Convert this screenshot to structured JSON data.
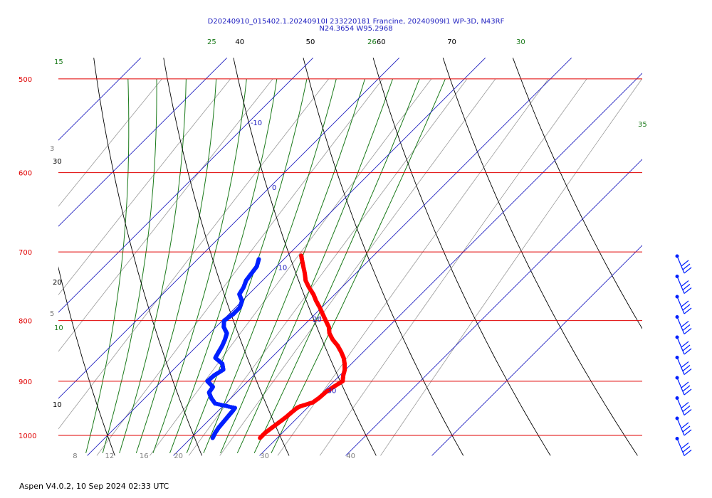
{
  "header": {
    "line1": "D20240910_015402.1.20240910I 233220181 Francine, 20240909I1 WP-3D, N43RF",
    "line2": "N24.3654 W95.2968"
  },
  "footer": {
    "text": "Aspen V4.0.2, 10 Sep 2024  02:33 UTC"
  },
  "colors": {
    "isobar": "#e00000",
    "isotherm": "#2020c0",
    "dry_adiabat": "#000000",
    "moist_adiabat": "#1a7a1a",
    "mixing_ratio": "#9a9a9a",
    "temperature": "#ff0000",
    "dewpoint": "#0020ff"
  },
  "chart_data": {
    "type": "skew-t",
    "pressure_range_hPa": [
      1030,
      500
    ],
    "isobars": [
      500,
      600,
      700,
      800,
      900,
      1000
    ],
    "isobar_labels": [
      "500",
      "600",
      "700",
      "800",
      "900",
      "1000"
    ],
    "isotherm_labels": [
      {
        "text": "-10",
        "T": -10,
        "p": 545
      },
      {
        "text": "0",
        "T": 0,
        "p": 618
      },
      {
        "text": "10",
        "T": 10,
        "p": 722
      },
      {
        "text": "20",
        "T": 20,
        "p": 798
      },
      {
        "text": "30",
        "T": 30,
        "p": 917
      }
    ],
    "bottom_axis_labels": [
      {
        "text": "8",
        "T": 8
      },
      {
        "text": "12",
        "T": 12
      },
      {
        "text": "16",
        "T": 16
      },
      {
        "text": "20",
        "T": 20
      },
      {
        "text": "30",
        "T": 30
      },
      {
        "text": "40",
        "T": 40
      }
    ],
    "dry_adiabat_labels": [
      {
        "text": "40",
        "theta": 40
      },
      {
        "text": "50",
        "theta": 50
      },
      {
        "text": "60",
        "theta": 60
      },
      {
        "text": "70",
        "theta": 70
      },
      {
        "text": "30",
        "theta": 30
      },
      {
        "text": "20",
        "theta": 20
      },
      {
        "text": "10",
        "theta": 10
      }
    ],
    "moist_adiabat_labels": [
      {
        "text": "15",
        "thetaW": 15
      },
      {
        "text": "10",
        "thetaW": 10
      },
      {
        "text": "25",
        "thetaW": 25
      },
      {
        "text": "26",
        "thetaW": 26
      },
      {
        "text": "30",
        "thetaW": 30
      },
      {
        "text": "35",
        "thetaW": 35
      }
    ],
    "mixing_ratio_labels": [
      {
        "text": "3",
        "w": 3
      },
      {
        "text": "5",
        "w": 5
      }
    ],
    "temperature": {
      "p": [
        1005,
        995,
        985,
        975,
        965,
        955,
        948,
        945,
        938,
        930,
        920,
        910,
        900,
        890,
        880,
        870,
        860,
        850,
        840,
        830,
        820,
        810,
        800,
        790,
        780,
        770,
        760,
        750,
        740,
        730,
        720,
        710,
        705
      ],
      "T": [
        28.0,
        28.0,
        28.2,
        28.4,
        28.6,
        28.7,
        28.8,
        29.0,
        30.0,
        30.2,
        30.3,
        30.6,
        31.0,
        30.4,
        29.9,
        29.2,
        28.4,
        27.4,
        26.3,
        25.0,
        23.9,
        23.1,
        22.0,
        20.9,
        19.8,
        18.6,
        17.5,
        16.2,
        15.0,
        14.1,
        13.1,
        12.1,
        11.6
      ]
    },
    "dewpoint": {
      "p": [
        1005,
        995,
        985,
        975,
        965,
        955,
        948,
        940,
        930,
        920,
        910,
        900,
        890,
        880,
        870,
        860,
        850,
        840,
        830,
        820,
        810,
        800,
        790,
        780,
        770,
        760,
        750,
        740,
        730,
        720,
        710
      ],
      "T": [
        22.5,
        22.2,
        22.0,
        21.9,
        21.8,
        21.7,
        21.6,
        18.8,
        17.7,
        16.8,
        16.6,
        15.3,
        15.4,
        15.8,
        15.0,
        13.5,
        13.2,
        12.9,
        12.5,
        12.0,
        10.9,
        10.2,
        10.5,
        10.5,
        10.0,
        8.9,
        8.6,
        8.1,
        7.9,
        7.7,
        7.1
      ]
    },
    "wind_barbs_count": 10
  }
}
